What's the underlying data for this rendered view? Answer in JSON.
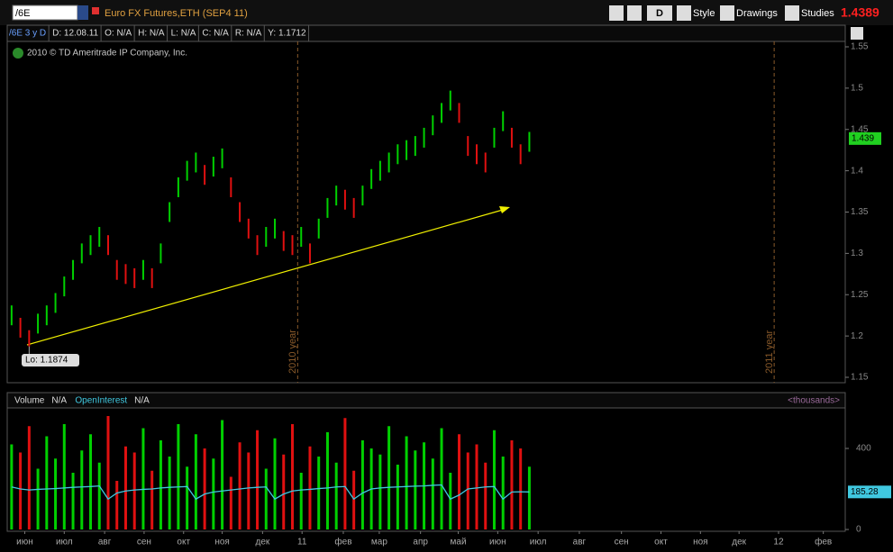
{
  "toolbar": {
    "symbol": "/6E",
    "description": "Euro FX Futures,ETH (SEP4 11)",
    "period": "D",
    "buttons": [
      "Style",
      "Drawings",
      "Studies"
    ],
    "last": 1.4389
  },
  "chart_data": [
    {
      "type": "ohlc",
      "header": [
        "/6E 3 y D",
        "D: 12.08.11",
        "O: N/A",
        "H: N/A",
        "L: N/A",
        "C: N/A",
        "R: N/A",
        "Y: 1.1712"
      ],
      "copyright": "2010 © TD Ameritrade IP Company, Inc.",
      "x": [
        0,
        1,
        2,
        3,
        4,
        5,
        6,
        7,
        8,
        9,
        10,
        11,
        12,
        13,
        14,
        15,
        16,
        17,
        18,
        19,
        20,
        21,
        22,
        23,
        24,
        25,
        26,
        27,
        28,
        29,
        30,
        31,
        32,
        33,
        34,
        35,
        36,
        37,
        38,
        39,
        40,
        41,
        42,
        43,
        44,
        45,
        46,
        47,
        48,
        49,
        50,
        51,
        52,
        53,
        54,
        55,
        56,
        57,
        58,
        59
      ],
      "high": [
        1.237,
        1.222,
        1.207,
        1.227,
        1.237,
        1.252,
        1.272,
        1.292,
        1.312,
        1.322,
        1.332,
        1.322,
        1.292,
        1.287,
        1.282,
        1.292,
        1.282,
        1.312,
        1.362,
        1.392,
        1.412,
        1.422,
        1.407,
        1.417,
        1.427,
        1.392,
        1.362,
        1.342,
        1.322,
        1.332,
        1.342,
        1.327,
        1.322,
        1.332,
        1.312,
        1.342,
        1.367,
        1.382,
        1.377,
        1.367,
        1.382,
        1.402,
        1.412,
        1.422,
        1.432,
        1.437,
        1.442,
        1.452,
        1.467,
        1.482,
        1.497,
        1.482,
        1.442,
        1.432,
        1.422,
        1.452,
        1.472,
        1.452,
        1.432,
        1.447
      ],
      "low": [
        1.213,
        1.198,
        1.1874,
        1.203,
        1.213,
        1.228,
        1.248,
        1.268,
        1.288,
        1.298,
        1.308,
        1.298,
        1.268,
        1.263,
        1.258,
        1.268,
        1.258,
        1.288,
        1.338,
        1.368,
        1.388,
        1.398,
        1.383,
        1.393,
        1.403,
        1.368,
        1.338,
        1.318,
        1.298,
        1.308,
        1.318,
        1.303,
        1.298,
        1.308,
        1.288,
        1.318,
        1.343,
        1.358,
        1.353,
        1.343,
        1.358,
        1.378,
        1.388,
        1.398,
        1.408,
        1.413,
        1.418,
        1.428,
        1.443,
        1.458,
        1.473,
        1.458,
        1.418,
        1.408,
        1.398,
        1.428,
        1.448,
        1.428,
        1.408,
        1.423
      ],
      "up_color": "#00d000",
      "down_color": "#e01010",
      "xlim": [
        -0.5,
        95
      ],
      "ylim": [
        1.15,
        1.55
      ],
      "yticks": [
        1.15,
        1.2,
        1.25,
        1.3,
        1.35,
        1.4,
        1.45,
        1.5,
        1.55
      ],
      "low_label": "Lo: 1.1874",
      "last_label": 1.439,
      "vlines": [
        {
          "value": 32.6,
          "label": "2010 year"
        },
        {
          "value": 86.9,
          "label": "2011 year"
        }
      ]
    },
    {
      "type": "bar",
      "readouts": [
        "N/A",
        "N/A"
      ],
      "unit_label": "<thousands>",
      "series": [
        {
          "name": "Volume",
          "values": [
            420,
            380,
            510,
            300,
            460,
            350,
            520,
            280,
            390,
            470,
            330,
            560,
            240,
            410,
            380,
            500,
            290,
            440,
            360,
            520,
            310,
            470,
            400,
            350,
            540,
            260,
            430,
            380,
            490,
            300,
            450,
            370,
            520,
            280,
            410,
            360,
            480,
            330,
            550,
            290,
            440,
            400,
            370,
            510,
            320,
            460,
            390,
            430,
            350,
            500,
            280,
            470,
            380,
            420,
            330,
            490,
            360,
            440,
            400,
            310
          ]
        },
        {
          "name": "OpenInterest",
          "color": "#40c8e0",
          "values": [
            210,
            200,
            195,
            198,
            200,
            202,
            205,
            208,
            210,
            212,
            215,
            150,
            180,
            190,
            195,
            198,
            200,
            205,
            208,
            210,
            212,
            150,
            175,
            185,
            190,
            195,
            200,
            205,
            208,
            210,
            150,
            175,
            190,
            195,
            198,
            202,
            205,
            210,
            212,
            150,
            180,
            200,
            205,
            208,
            210,
            212,
            214,
            215,
            218,
            220,
            150,
            170,
            200,
            205,
            210,
            212,
            150,
            185,
            186,
            185.28
          ]
        }
      ],
      "xlim": [
        -0.5,
        95
      ],
      "ylim": [
        0,
        600
      ],
      "yticks": [
        0,
        400
      ],
      "xticks": [
        {
          "value": 1.5,
          "label": "июн"
        },
        {
          "value": 6,
          "label": "июл"
        },
        {
          "value": 10.6,
          "label": "авг"
        },
        {
          "value": 15.1,
          "label": "сен"
        },
        {
          "value": 19.6,
          "label": "окт"
        },
        {
          "value": 24,
          "label": "ноя"
        },
        {
          "value": 28.6,
          "label": "дек"
        },
        {
          "value": 33.1,
          "label": "11"
        },
        {
          "value": 37.8,
          "label": "фев"
        },
        {
          "value": 41.9,
          "label": "мар"
        },
        {
          "value": 46.6,
          "label": "апр"
        },
        {
          "value": 50.9,
          "label": "май"
        },
        {
          "value": 55.4,
          "label": "июн"
        },
        {
          "value": 60,
          "label": "июл"
        },
        {
          "value": 64.7,
          "label": "авг"
        },
        {
          "value": 69.5,
          "label": "сен"
        },
        {
          "value": 74,
          "label": "окт"
        },
        {
          "value": 78.5,
          "label": "ноя"
        },
        {
          "value": 82.9,
          "label": "дек"
        },
        {
          "value": 87.4,
          "label": "12"
        },
        {
          "value": 92.5,
          "label": "фев"
        }
      ]
    }
  ]
}
